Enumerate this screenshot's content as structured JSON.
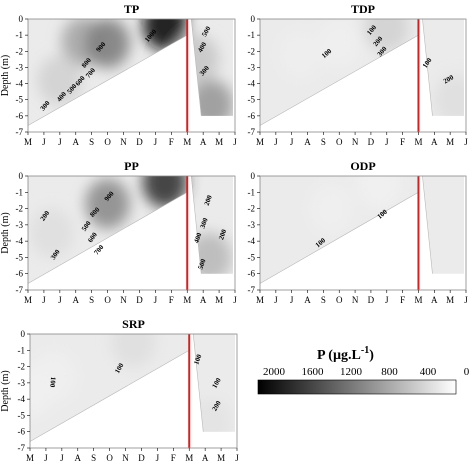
{
  "chart_data": [
    {
      "type": "heatmap",
      "title": "TP",
      "ylabel": "Depth (m)",
      "x_ticks": [
        "M",
        "J",
        "J",
        "A",
        "S",
        "O",
        "N",
        "D",
        "J",
        "F",
        "M",
        "A",
        "M",
        "J"
      ],
      "y_ticks": [
        "0",
        "-1",
        "-2",
        "-3",
        "-4",
        "-5",
        "-6",
        "-7"
      ],
      "ylim": [
        -7,
        0
      ],
      "marker_month": "M",
      "contour_labels": [
        "300",
        "400",
        "500",
        "600",
        "700",
        "800",
        "900",
        "1000",
        "500",
        "400",
        "300"
      ],
      "regions": [
        {
          "x": 3.5,
          "y": -1.4,
          "value": 700
        },
        {
          "x": 5.0,
          "y": -1.5,
          "value": 1000
        },
        {
          "x": 8.6,
          "y": -0.4,
          "value": 1900
        },
        {
          "x": 2.0,
          "y": -3.8,
          "value": 350
        },
        {
          "x": 11.5,
          "y": -5.3,
          "value": 800
        },
        {
          "x": 10.6,
          "y": -2.5,
          "value": 450
        }
      ]
    },
    {
      "type": "heatmap",
      "title": "TDP",
      "ylabel": "",
      "x_ticks": [
        "M",
        "J",
        "J",
        "A",
        "S",
        "O",
        "N",
        "D",
        "J",
        "F",
        "M",
        "A",
        "M",
        "J"
      ],
      "y_ticks": [
        "0",
        "-1",
        "-2",
        "-3",
        "-4",
        "-5",
        "-6",
        "-7"
      ],
      "ylim": [
        -7,
        0
      ],
      "marker_month": "M",
      "contour_labels": [
        "100",
        "100",
        "200",
        "300",
        "100",
        "200"
      ],
      "regions": [
        {
          "x": 2.5,
          "y": -2.2,
          "value": 130
        },
        {
          "x": 5.0,
          "y": -1.5,
          "value": 120
        },
        {
          "x": 8.0,
          "y": -0.5,
          "value": 350
        },
        {
          "x": 12.4,
          "y": -5.0,
          "value": 250
        }
      ]
    },
    {
      "type": "heatmap",
      "title": "PP",
      "ylabel": "Depth (m)",
      "x_ticks": [
        "M",
        "J",
        "J",
        "A",
        "S",
        "O",
        "N",
        "D",
        "J",
        "F",
        "M",
        "A",
        "M",
        "J"
      ],
      "y_ticks": [
        "0",
        "-1",
        "-2",
        "-3",
        "-4",
        "-5",
        "-6",
        "-7"
      ],
      "ylim": [
        -7,
        0
      ],
      "marker_month": "M",
      "contour_labels": [
        "200",
        "300",
        "500",
        "600",
        "700",
        "800",
        "900",
        "200",
        "300",
        "400",
        "500",
        "200"
      ],
      "regions": [
        {
          "x": 5.0,
          "y": -1.7,
          "value": 900
        },
        {
          "x": 8.6,
          "y": -0.4,
          "value": 1600
        },
        {
          "x": 1.5,
          "y": -3.5,
          "value": 250
        },
        {
          "x": 11.4,
          "y": -5.0,
          "value": 550
        }
      ]
    },
    {
      "type": "heatmap",
      "title": "ODP",
      "ylabel": "",
      "x_ticks": [
        "M",
        "J",
        "J",
        "A",
        "S",
        "O",
        "N",
        "D",
        "J",
        "F",
        "M",
        "A",
        "M",
        "J"
      ],
      "y_ticks": [
        "0",
        "-1",
        "-2",
        "-3",
        "-4",
        "-5",
        "-6",
        "-7"
      ],
      "ylim": [
        -7,
        0
      ],
      "marker_month": "M",
      "contour_labels": [
        "100",
        "100"
      ],
      "regions": [
        {
          "x": 4.5,
          "y": -2.0,
          "value": 120
        },
        {
          "x": 7.5,
          "y": -0.5,
          "value": 110
        }
      ]
    },
    {
      "type": "heatmap",
      "title": "SRP",
      "ylabel": "Depth (m)",
      "x_ticks": [
        "M",
        "J",
        "J",
        "A",
        "S",
        "O",
        "N",
        "D",
        "J",
        "F",
        "M",
        "A",
        "M",
        "J"
      ],
      "y_ticks": [
        "0",
        "-1",
        "-2",
        "-3",
        "-4",
        "-5",
        "-6",
        "-7"
      ],
      "ylim": [
        -7,
        0
      ],
      "marker_month": "M",
      "contour_labels": [
        "100",
        "100",
        "100",
        "100",
        "200"
      ],
      "regions": [
        {
          "x": 1.5,
          "y": -2.6,
          "value": 120
        },
        {
          "x": 6.5,
          "y": -0.5,
          "value": 250
        },
        {
          "x": 11.3,
          "y": -5.5,
          "value": 220
        },
        {
          "x": 0.1,
          "y": -3.5,
          "value": 110
        }
      ]
    }
  ],
  "legend": {
    "title": "P (µg.L",
    "title_exp": "-1",
    "title_end": ")",
    "ticks": [
      "2000",
      "1600",
      "1200",
      "800",
      "400",
      "0"
    ]
  },
  "colors": {
    "marker_line": "#d62020",
    "scale_max": "#000000",
    "scale_min": "#ffffff",
    "outline": "#888888"
  }
}
